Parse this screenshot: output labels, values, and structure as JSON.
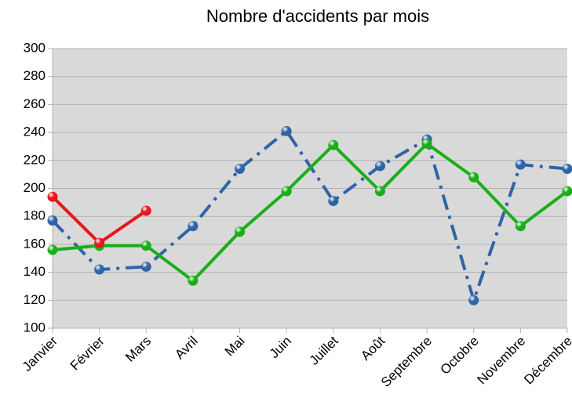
{
  "chart_data": {
    "type": "line",
    "title": "Nombre d'accidents par mois",
    "categories": [
      "Janvier",
      "Février",
      "Mars",
      "Avril",
      "Mai",
      "Juin",
      "Juillet",
      "Août",
      "Septembre",
      "Octobre",
      "Novembre",
      "Décembre"
    ],
    "series": [
      {
        "color": "#2f65a7",
        "line_style": "dash-dot",
        "values": [
          177,
          142,
          144,
          173,
          214,
          241,
          191,
          216,
          235,
          120,
          217,
          214
        ]
      },
      {
        "color": "#1aae1a",
        "line_style": "solid",
        "values": [
          156,
          159,
          159,
          134,
          169,
          198,
          231,
          198,
          232,
          208,
          173,
          198
        ]
      },
      {
        "color": "#e8161b",
        "line_style": "solid",
        "values": [
          194,
          161,
          184,
          null,
          null,
          null,
          null,
          null,
          null,
          null,
          null,
          null
        ]
      }
    ],
    "ylim": [
      100,
      300
    ],
    "yticks": [
      100,
      120,
      140,
      160,
      180,
      200,
      220,
      240,
      260,
      280,
      300
    ],
    "grid": true
  }
}
